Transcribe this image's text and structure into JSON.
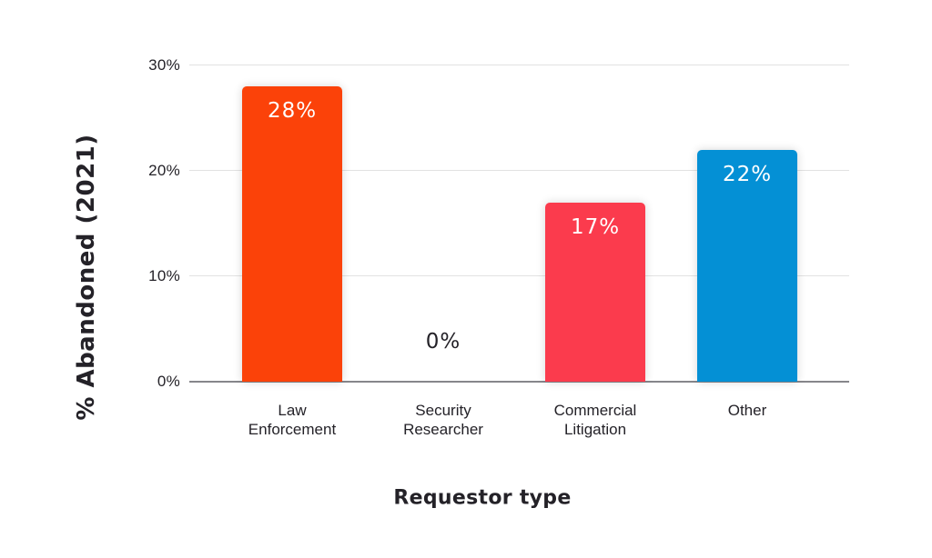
{
  "chart_data": {
    "type": "bar",
    "title": "",
    "xlabel": "Requestor type",
    "ylabel": "% Abandoned (2021)",
    "categories": [
      "Law Enforcement",
      "Security Researcher",
      "Commercial Litigation",
      "Other"
    ],
    "values": [
      28,
      0,
      17,
      22
    ],
    "bars": [
      {
        "category": "Law Enforcement",
        "label_lines": [
          "Law",
          "Enforcement"
        ],
        "value": 28,
        "value_label": "28%",
        "color": "#FB4209"
      },
      {
        "category": "Security Researcher",
        "label_lines": [
          "Security",
          "Researcher"
        ],
        "value": 0,
        "value_label": "0%",
        "color": null
      },
      {
        "category": "Commercial Litigation",
        "label_lines": [
          "Commercial",
          "Litigation"
        ],
        "value": 17,
        "value_label": "17%",
        "color": "#FB3B4D"
      },
      {
        "category": "Other",
        "label_lines": [
          "Other"
        ],
        "value": 22,
        "value_label": "22%",
        "color": "#0490D5"
      }
    ],
    "yticks": [
      "0%",
      "10%",
      "20%",
      "30%"
    ],
    "ylim": [
      0,
      30
    ],
    "grid": true,
    "legend": false,
    "colors": {
      "grid_line": "#E2E2E2",
      "axis_line": "#86868B",
      "text": "#242228",
      "value_label_on_bar": "#FFFFFF",
      "background": "#FFFFFF"
    }
  }
}
